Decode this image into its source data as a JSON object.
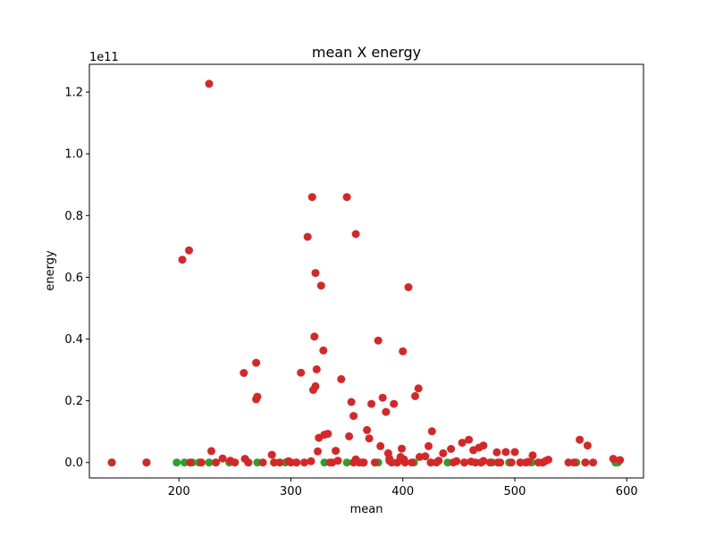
{
  "chart_data": {
    "type": "scatter",
    "title": "mean X energy",
    "xlabel": "mean",
    "ylabel": "energy",
    "offset_label": "1e11",
    "xlim": [
      120,
      615
    ],
    "ylim": [
      -0.05,
      1.29
    ],
    "xticks": [
      200,
      300,
      400,
      500,
      600
    ],
    "yticks": [
      0.0,
      0.2,
      0.4,
      0.6,
      0.8,
      1.0,
      1.2
    ],
    "ytick_labels": [
      "0.0",
      "0.2",
      "0.4",
      "0.6",
      "0.8",
      "1.0",
      "1.2"
    ],
    "grid": false,
    "legend": "none",
    "series": [
      {
        "color": "#2ca02c",
        "x": [
          140,
          171,
          198,
          205,
          212,
          218,
          227,
          233,
          245,
          262,
          270,
          285,
          295,
          305,
          330,
          350,
          365,
          378,
          395,
          410,
          425,
          440,
          455,
          470,
          480,
          495,
          515,
          525,
          555,
          563,
          590,
          592
        ],
        "y": [
          0.0,
          0.0,
          0.0,
          0.0,
          0.0,
          0.0,
          0.0,
          0.0,
          0.0,
          0.0,
          0.0,
          0.0,
          0.0,
          0.0,
          0.0,
          0.0,
          0.0,
          0.0,
          0.0,
          0.0,
          0.0,
          0.0,
          0.0,
          0.0,
          0.0,
          0.0,
          0.0,
          0.0,
          0.0,
          0.0,
          0.0,
          0.0
        ]
      },
      {
        "color": "#d62728",
        "x": [
          140,
          171,
          203,
          209,
          227,
          229,
          210,
          220,
          239,
          246,
          258,
          269,
          270,
          269,
          259,
          233,
          250,
          262,
          275,
          283,
          290,
          300,
          309,
          312,
          315,
          319,
          320,
          321,
          322,
          322,
          323,
          324,
          325,
          327,
          329,
          330,
          333,
          337,
          340,
          345,
          350,
          352,
          354,
          356,
          356,
          358,
          361,
          364,
          368,
          370,
          372,
          375,
          378,
          380,
          382,
          385,
          387,
          390,
          392,
          395,
          399,
          400,
          402,
          405,
          408,
          411,
          414,
          420,
          423,
          426,
          430,
          436,
          443,
          453,
          455,
          459,
          463,
          468,
          470,
          472,
          478,
          484,
          487,
          492,
          497,
          500,
          505,
          510,
          516,
          521,
          530,
          548,
          553,
          558,
          563,
          565,
          570,
          588,
          594,
          285,
          305,
          335,
          365,
          395,
          425,
          445,
          465,
          485,
          505,
          525,
          415,
          398,
          388,
          358,
          342,
          318,
          298,
          388,
          401,
          432,
          448,
          461,
          472,
          512,
          528
        ],
        "y": [
          0.0,
          0.0,
          0.657,
          0.687,
          1.227,
          0.037,
          0.0,
          0.0,
          0.013,
          0.006,
          0.29,
          0.323,
          0.213,
          0.205,
          0.012,
          0.0,
          0.0,
          0.0,
          0.0,
          0.025,
          0.0,
          0.0,
          0.291,
          0.0,
          0.731,
          0.86,
          0.235,
          0.408,
          0.247,
          0.614,
          0.302,
          0.036,
          0.08,
          0.573,
          0.363,
          0.09,
          0.093,
          0.0,
          0.038,
          0.27,
          0.86,
          0.085,
          0.196,
          0.151,
          0.0,
          0.74,
          0.0,
          0.0,
          0.105,
          0.078,
          0.19,
          0.0,
          0.395,
          0.053,
          0.21,
          0.164,
          0.03,
          0.0,
          0.19,
          0.0,
          0.045,
          0.36,
          0.0,
          0.568,
          0.0,
          0.215,
          0.24,
          0.02,
          0.053,
          0.101,
          0.0,
          0.03,
          0.044,
          0.064,
          0.0,
          0.074,
          0.04,
          0.048,
          0.0,
          0.055,
          0.0,
          0.033,
          0.0,
          0.034,
          0.0,
          0.034,
          0.0,
          0.0,
          0.023,
          0.0,
          0.009,
          0.0,
          0.0,
          0.074,
          0.0,
          0.055,
          0.0,
          0.012,
          0.008,
          0.0,
          0.0,
          0.0,
          0.0,
          0.0,
          0.0,
          0.0,
          0.0,
          0.0,
          0.0,
          0.0,
          0.018,
          0.018,
          0.012,
          0.01,
          0.006,
          0.004,
          0.004,
          0.006,
          0.01,
          0.006,
          0.004,
          0.003,
          0.005,
          0.002,
          0.006
        ]
      }
    ]
  }
}
